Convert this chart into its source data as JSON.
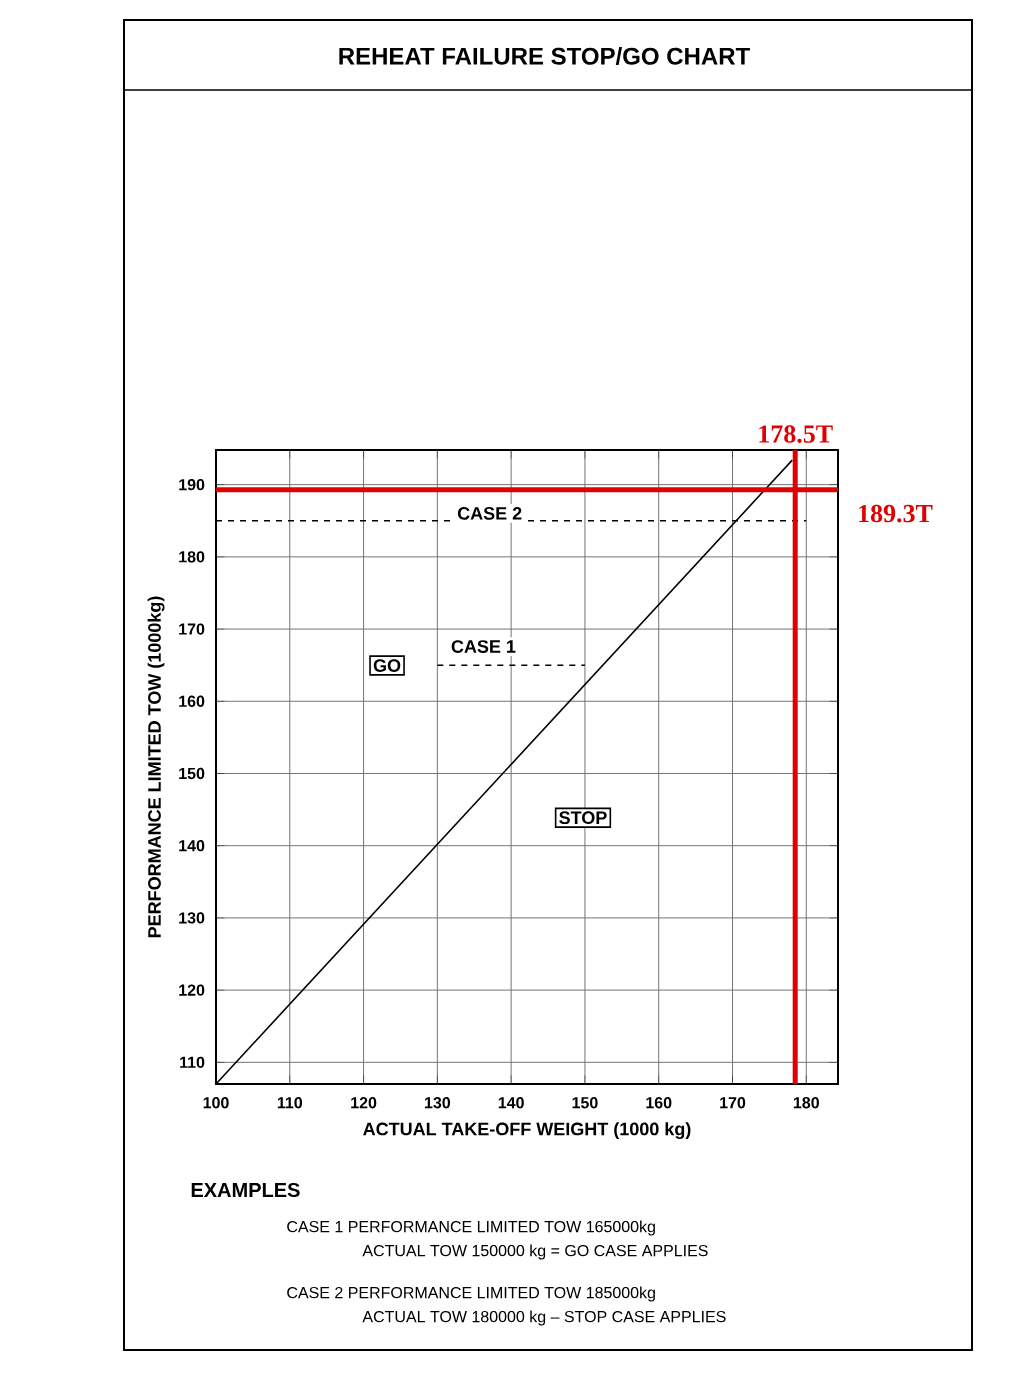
{
  "chart_data": {
    "type": "line",
    "title": "REHEAT FAILURE STOP/GO CHART",
    "xlabel": "ACTUAL TAKE-OFF WEIGHT (1000 kg)",
    "ylabel": "PERFORMANCE LIMITED TOW (1000kg)",
    "xlim": [
      100,
      184.3
    ],
    "ylim": [
      107,
      194.8
    ],
    "xticks": [
      100,
      110,
      120,
      130,
      140,
      150,
      160,
      170,
      180
    ],
    "yticks": [
      110,
      120,
      130,
      140,
      150,
      160,
      170,
      180,
      190
    ],
    "grid": true,
    "marker": "none",
    "series": [
      {
        "color": "#000000",
        "x": [
          100,
          178.1
        ],
        "values": [
          107,
          193.4
        ]
      },
      {
        "color": "#000000",
        "line_style": "dashed",
        "x": [
          100,
          180
        ],
        "values": [
          185,
          185
        ]
      },
      {
        "color": "#000000",
        "line_style": "dashed",
        "x": [
          130,
          150
        ],
        "values": [
          165,
          165
        ]
      }
    ],
    "ref_lines": [
      {
        "axis": "x",
        "value": 178.5,
        "label": "178.5T",
        "color": "#e00000"
      },
      {
        "axis": "y",
        "value": 189.3,
        "label": "189.3T",
        "color": "#e00000"
      }
    ],
    "annotations": [
      "GO",
      "CASE 1",
      "CASE 2",
      "STOP",
      "EXAMPLES",
      "CASE 1 PERFORMANCE LIMITED TOW 165000kg",
      "ACTUAL TOW 150000 kg = GO CASE APPLIES",
      "CASE 2 PERFORMANCE LIMITED TOW 185000kg",
      "ACTUAL TOW 180000 kg – STOP CASE APPLIES"
    ]
  }
}
